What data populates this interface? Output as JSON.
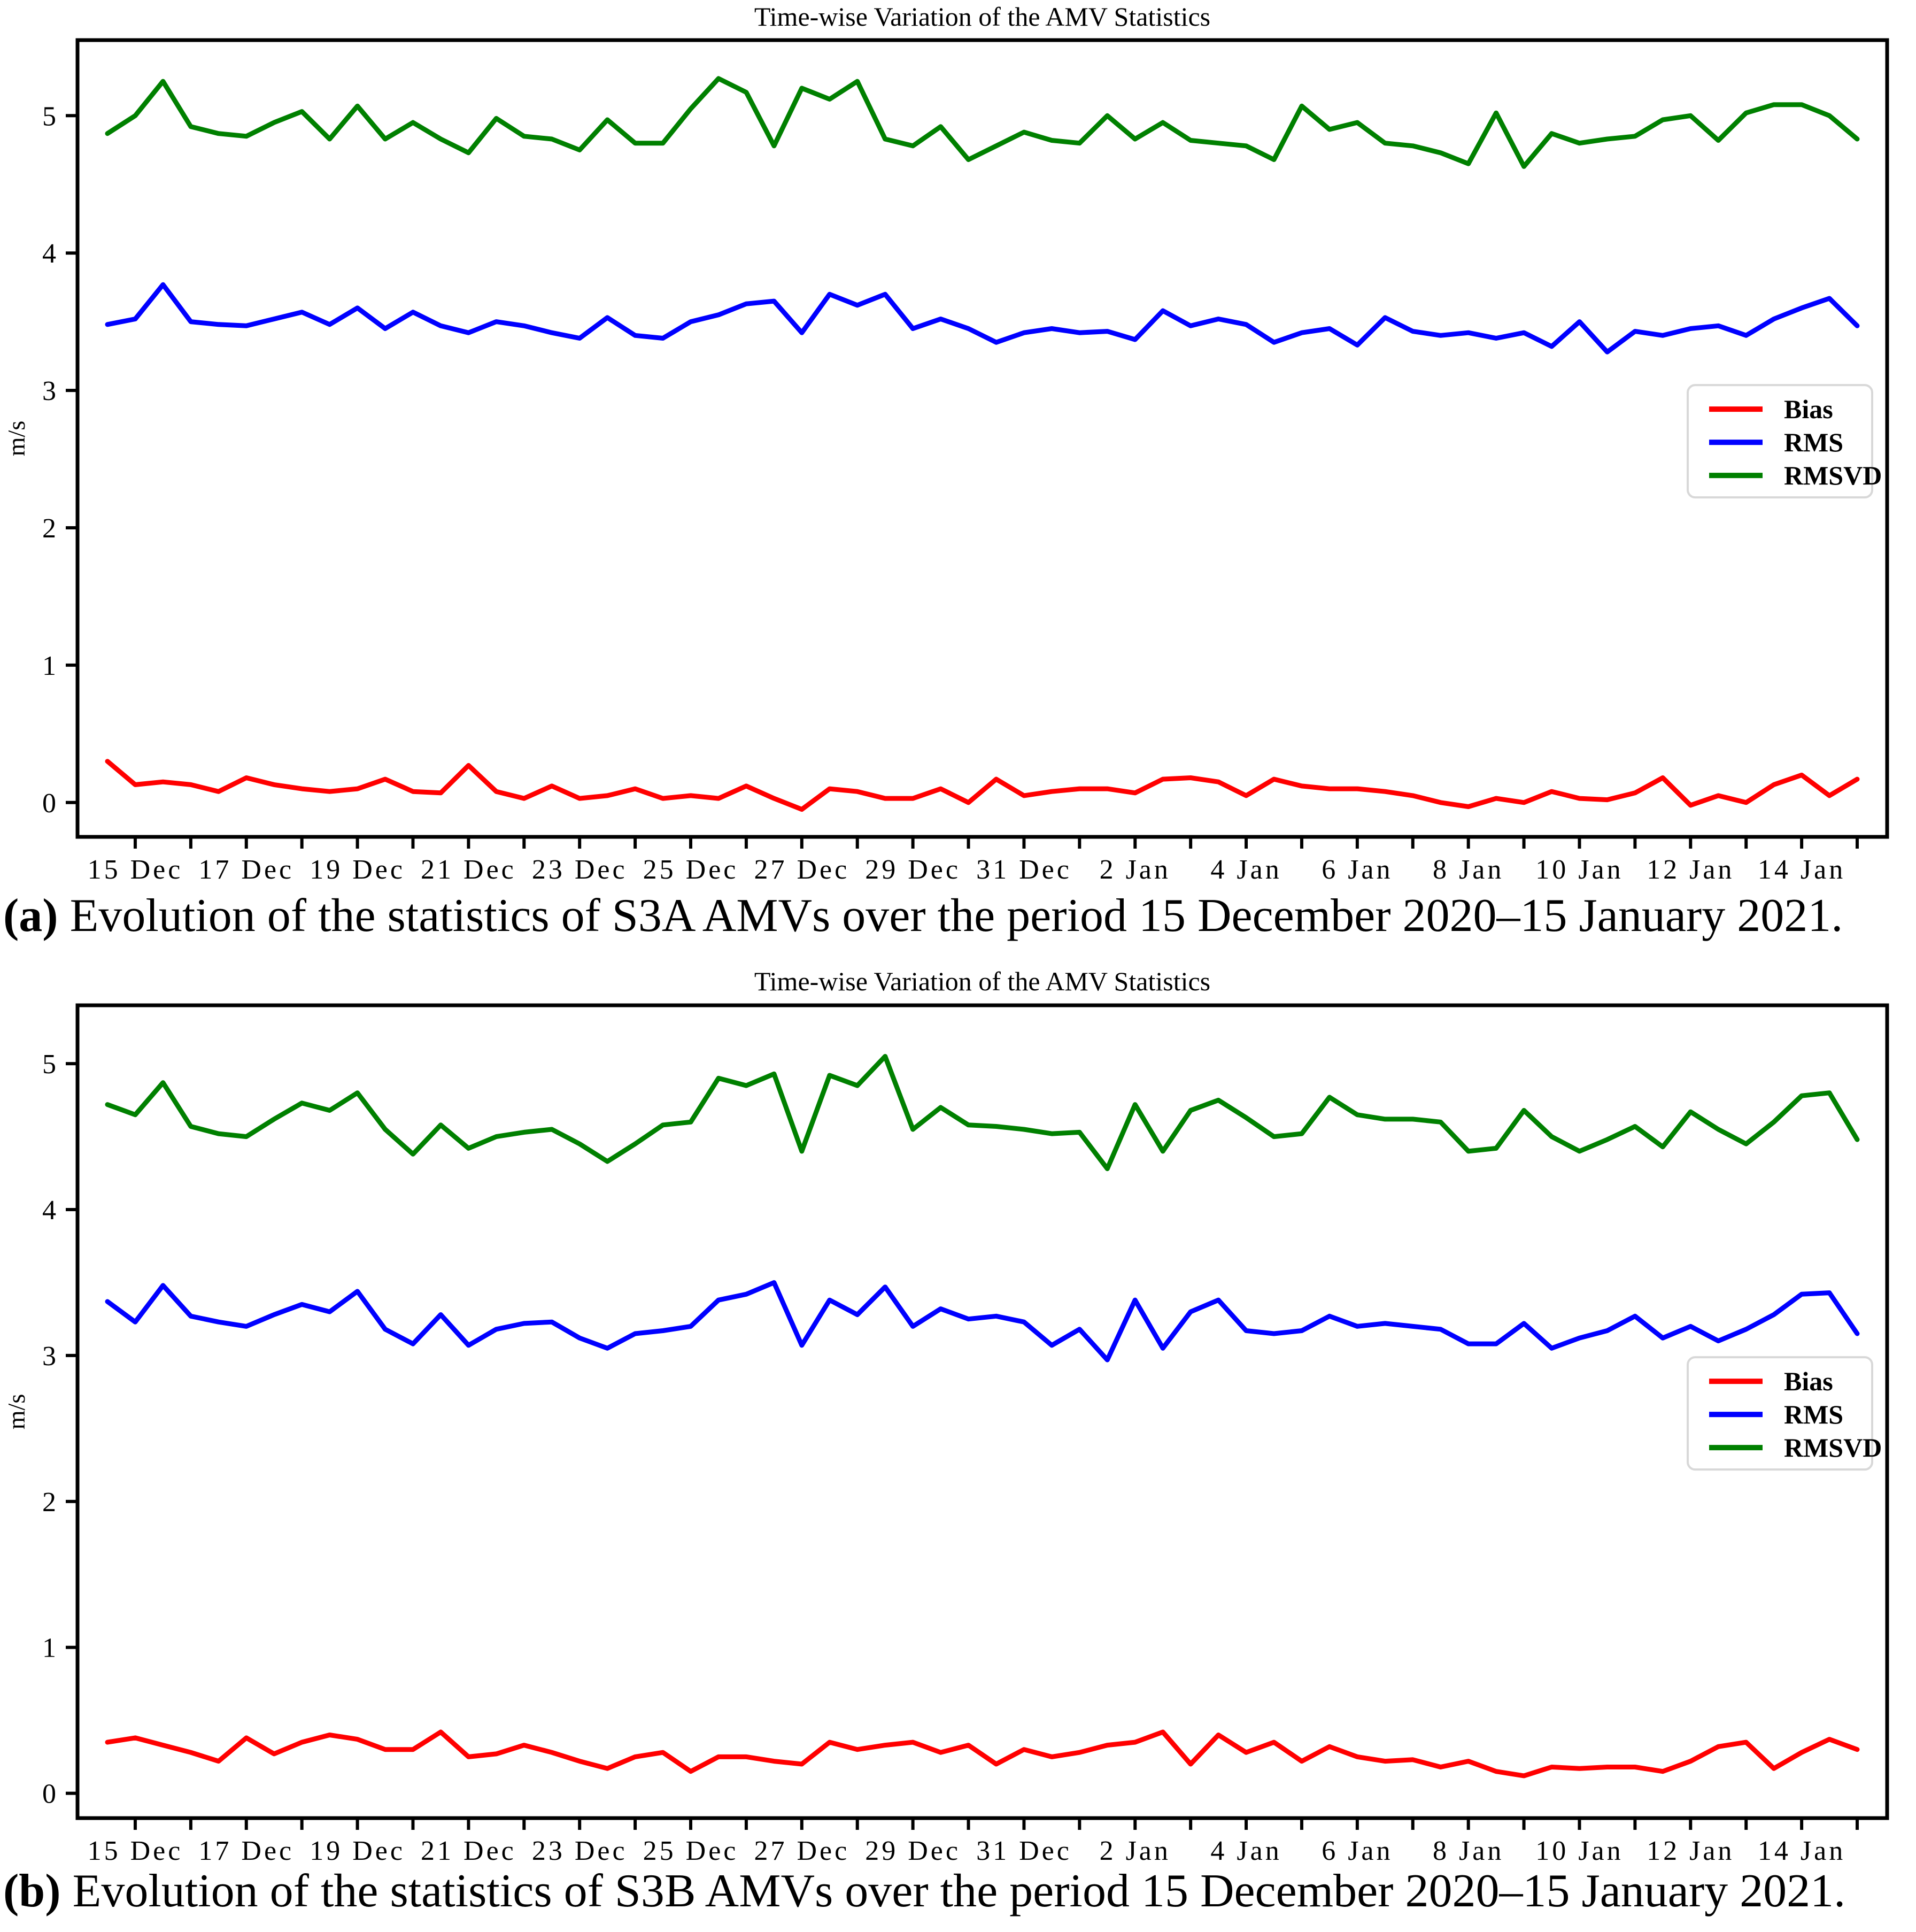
{
  "figure": {
    "panels": [
      {
        "caption": {
          "label": "(a)",
          "text": " Evolution of the statistics of S3A AMVs over the period 15 December 2020–15 January 2021."
        }
      },
      {
        "caption": {
          "label": "(b)",
          "text": " Evolution of the statistics of S3B AMVs over the period 15 December 2020–15 January 2021."
        }
      }
    ]
  },
  "colors": {
    "bias": "#ff0000",
    "rms": "#0000ff",
    "rmsvd": "#008000",
    "axis": "#000000",
    "legend_border": "#d8d8d8"
  },
  "chart_data": [
    {
      "type": "line",
      "title": "Time-wise Variation of the AMV Statistics",
      "xlabel": "",
      "ylabel": "m/s",
      "ylim": [
        -0.25,
        5.55
      ],
      "yticks": [
        0,
        1,
        2,
        3,
        4,
        5
      ],
      "grid": false,
      "legend_position": "center right",
      "legend": [
        "Bias",
        "RMS",
        "RMSVD"
      ],
      "x_period": "15 December 2020 - 15 January 2021, twice-daily points",
      "xtick_labels": [
        "15 Dec",
        "17 Dec",
        "19 Dec",
        "21 Dec",
        "23 Dec",
        "25 Dec",
        "27 Dec",
        "29 Dec",
        "31 Dec",
        "2 Jan",
        "4 Jan",
        "6 Jan",
        "8 Jan",
        "10 Jan",
        "12 Jan",
        "14 Jan"
      ],
      "xtick_indices": [
        1,
        5,
        9,
        13,
        17,
        21,
        25,
        29,
        33,
        37,
        41,
        45,
        49,
        53,
        57,
        61
      ],
      "series": [
        {
          "name": "Bias",
          "color": "#ff0000",
          "values": [
            0.3,
            0.13,
            0.15,
            0.13,
            0.08,
            0.18,
            0.13,
            0.1,
            0.08,
            0.1,
            0.17,
            0.08,
            0.07,
            0.27,
            0.08,
            0.03,
            0.12,
            0.03,
            0.05,
            0.1,
            0.03,
            0.05,
            0.03,
            0.12,
            0.03,
            -0.05,
            0.1,
            0.08,
            0.03,
            0.03,
            0.1,
            0.0,
            0.17,
            0.05,
            0.08,
            0.1,
            0.1,
            0.07,
            0.17,
            0.18,
            0.15,
            0.05,
            0.17,
            0.12,
            0.1,
            0.1,
            0.08,
            0.05,
            0.0,
            -0.03,
            0.03,
            0.0,
            0.08,
            0.03,
            0.02,
            0.07,
            0.18,
            -0.02,
            0.05,
            0.0,
            0.13,
            0.2,
            0.05,
            0.17
          ]
        },
        {
          "name": "RMS",
          "color": "#0000ff",
          "values": [
            3.48,
            3.52,
            3.77,
            3.5,
            3.48,
            3.47,
            3.52,
            3.57,
            3.48,
            3.6,
            3.45,
            3.57,
            3.47,
            3.42,
            3.5,
            3.47,
            3.42,
            3.38,
            3.53,
            3.4,
            3.38,
            3.5,
            3.55,
            3.63,
            3.65,
            3.42,
            3.7,
            3.62,
            3.7,
            3.45,
            3.52,
            3.45,
            3.35,
            3.42,
            3.45,
            3.42,
            3.43,
            3.37,
            3.58,
            3.47,
            3.52,
            3.48,
            3.35,
            3.42,
            3.45,
            3.33,
            3.53,
            3.43,
            3.4,
            3.42,
            3.38,
            3.42,
            3.32,
            3.5,
            3.28,
            3.43,
            3.4,
            3.45,
            3.47,
            3.4,
            3.52,
            3.6,
            3.67,
            3.47
          ]
        },
        {
          "name": "RMSVD",
          "color": "#008000",
          "values": [
            4.87,
            5.0,
            5.25,
            4.92,
            4.87,
            4.85,
            4.95,
            5.03,
            4.83,
            5.07,
            4.83,
            4.95,
            4.83,
            4.73,
            4.98,
            4.85,
            4.83,
            4.75,
            4.97,
            4.8,
            4.8,
            5.05,
            5.27,
            5.17,
            4.78,
            5.2,
            5.12,
            5.25,
            4.83,
            4.78,
            4.92,
            4.68,
            4.78,
            4.88,
            4.82,
            4.8,
            5.0,
            4.83,
            4.95,
            4.82,
            4.8,
            4.78,
            4.68,
            5.07,
            4.9,
            4.95,
            4.8,
            4.78,
            4.73,
            4.65,
            5.02,
            4.63,
            4.87,
            4.8,
            4.83,
            4.85,
            4.97,
            5.0,
            4.82,
            5.02,
            5.08,
            5.08,
            5.0,
            4.83
          ]
        }
      ]
    },
    {
      "type": "line",
      "title": "Time-wise Variation of the AMV Statistics",
      "xlabel": "",
      "ylabel": "m/s",
      "ylim": [
        -0.17,
        5.4
      ],
      "yticks": [
        0,
        1,
        2,
        3,
        4,
        5
      ],
      "grid": false,
      "legend_position": "center right",
      "legend": [
        "Bias",
        "RMS",
        "RMSVD"
      ],
      "x_period": "15 December 2020 - 15 January 2021, twice-daily points",
      "xtick_labels": [
        "15 Dec",
        "17 Dec",
        "19 Dec",
        "21 Dec",
        "23 Dec",
        "25 Dec",
        "27 Dec",
        "29 Dec",
        "31 Dec",
        "2 Jan",
        "4 Jan",
        "6 Jan",
        "8 Jan",
        "10 Jan",
        "12 Jan",
        "14 Jan"
      ],
      "xtick_indices": [
        1,
        5,
        9,
        13,
        17,
        21,
        25,
        29,
        33,
        37,
        41,
        45,
        49,
        53,
        57,
        61
      ],
      "series": [
        {
          "name": "Bias",
          "color": "#ff0000",
          "values": [
            0.35,
            0.38,
            0.33,
            0.28,
            0.22,
            0.38,
            0.27,
            0.35,
            0.4,
            0.37,
            0.3,
            0.3,
            0.42,
            0.25,
            0.27,
            0.33,
            0.28,
            0.22,
            0.17,
            0.25,
            0.28,
            0.15,
            0.25,
            0.25,
            0.22,
            0.2,
            0.35,
            0.3,
            0.33,
            0.35,
            0.28,
            0.33,
            0.2,
            0.3,
            0.25,
            0.28,
            0.33,
            0.35,
            0.42,
            0.2,
            0.4,
            0.28,
            0.35,
            0.22,
            0.32,
            0.25,
            0.22,
            0.23,
            0.18,
            0.22,
            0.15,
            0.12,
            0.18,
            0.17,
            0.18,
            0.18,
            0.15,
            0.22,
            0.32,
            0.35,
            0.17,
            0.28,
            0.37,
            0.3
          ]
        },
        {
          "name": "RMS",
          "color": "#0000ff",
          "values": [
            3.37,
            3.23,
            3.48,
            3.27,
            3.23,
            3.2,
            3.28,
            3.35,
            3.3,
            3.44,
            3.18,
            3.08,
            3.28,
            3.07,
            3.18,
            3.22,
            3.23,
            3.12,
            3.05,
            3.15,
            3.17,
            3.2,
            3.38,
            3.42,
            3.5,
            3.07,
            3.38,
            3.28,
            3.47,
            3.2,
            3.32,
            3.25,
            3.27,
            3.23,
            3.07,
            3.18,
            2.97,
            3.38,
            3.05,
            3.3,
            3.38,
            3.17,
            3.15,
            3.17,
            3.27,
            3.2,
            3.22,
            3.2,
            3.18,
            3.08,
            3.08,
            3.22,
            3.05,
            3.12,
            3.17,
            3.27,
            3.12,
            3.2,
            3.1,
            3.18,
            3.28,
            3.42,
            3.43,
            3.15
          ]
        },
        {
          "name": "RMSVD",
          "color": "#008000",
          "values": [
            4.72,
            4.65,
            4.87,
            4.57,
            4.52,
            4.5,
            4.62,
            4.73,
            4.68,
            4.8,
            4.55,
            4.38,
            4.58,
            4.42,
            4.5,
            4.53,
            4.55,
            4.45,
            4.33,
            4.45,
            4.58,
            4.6,
            4.9,
            4.85,
            4.93,
            4.4,
            4.92,
            4.85,
            5.05,
            4.55,
            4.7,
            4.58,
            4.57,
            4.55,
            4.52,
            4.53,
            4.28,
            4.72,
            4.4,
            4.68,
            4.75,
            4.63,
            4.5,
            4.52,
            4.77,
            4.65,
            4.62,
            4.62,
            4.6,
            4.4,
            4.42,
            4.68,
            4.5,
            4.4,
            4.48,
            4.57,
            4.43,
            4.67,
            4.55,
            4.45,
            4.6,
            4.78,
            4.8,
            4.48
          ]
        }
      ]
    }
  ]
}
